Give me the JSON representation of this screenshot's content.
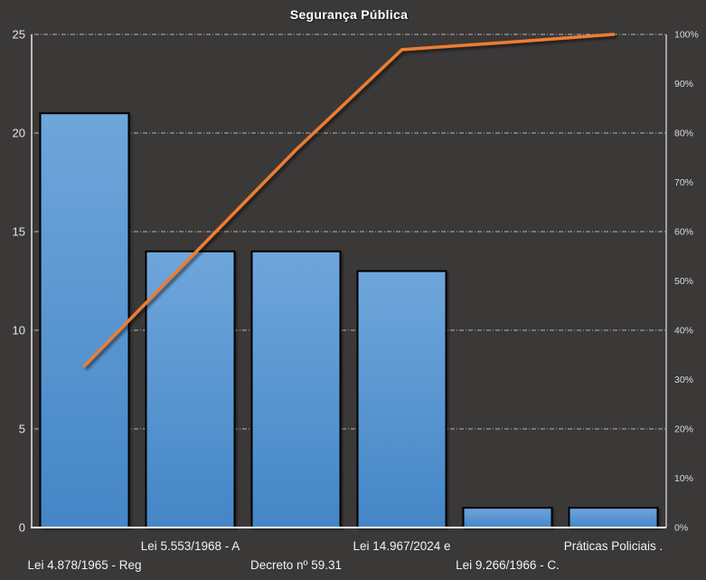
{
  "title": "Segurança Pública",
  "colors": {
    "background": "#3B3838",
    "bar_fill_top": "#6FA6DB",
    "bar_fill_bottom": "#4486C7",
    "bar_border": "#000000",
    "line": "#ED7D31",
    "axis": "#E7E6E6",
    "gridline": "#C9C9C9",
    "tick_text": "#E7E6E6",
    "right_tick_text": "#DBDBDB",
    "category_text": "#F2F2F2"
  },
  "chart_data": {
    "type": "bar",
    "subtype": "pareto (bar + cumulative line)",
    "title": "Segurança Pública",
    "categories": [
      "Lei 4.878/1965 - Reg",
      "Lei 5.553/1968 - A",
      "Decreto nº 59.31",
      "Lei 14.967/2024 e",
      "Lei 9.266/1966 - C.",
      "Práticas Policiais ."
    ],
    "series": [
      {
        "name": "count",
        "type": "bar",
        "axis": "left",
        "values": [
          21,
          14,
          14,
          13,
          1,
          1
        ]
      },
      {
        "name": "cumulative-percent",
        "type": "line",
        "axis": "right",
        "values": [
          32.8,
          54.7,
          76.6,
          96.9,
          98.4,
          100
        ]
      }
    ],
    "left_axis": {
      "min": 0,
      "max": 25,
      "step": 5,
      "tick_labels": [
        "0",
        "5",
        "10",
        "15",
        "20",
        "25"
      ]
    },
    "right_axis": {
      "min": 0,
      "max": 100,
      "step": 10,
      "tick_labels": [
        "0%",
        "10%",
        "20%",
        "30%",
        "40%",
        "50%",
        "60%",
        "70%",
        "80%",
        "90%",
        "100%"
      ]
    },
    "grid": {
      "horizontal": true,
      "at_left_axis_values": [
        5,
        10,
        15,
        20,
        25
      ],
      "style": "dash-dot"
    },
    "legend": "none",
    "xlabel": "",
    "ylabel": ""
  }
}
